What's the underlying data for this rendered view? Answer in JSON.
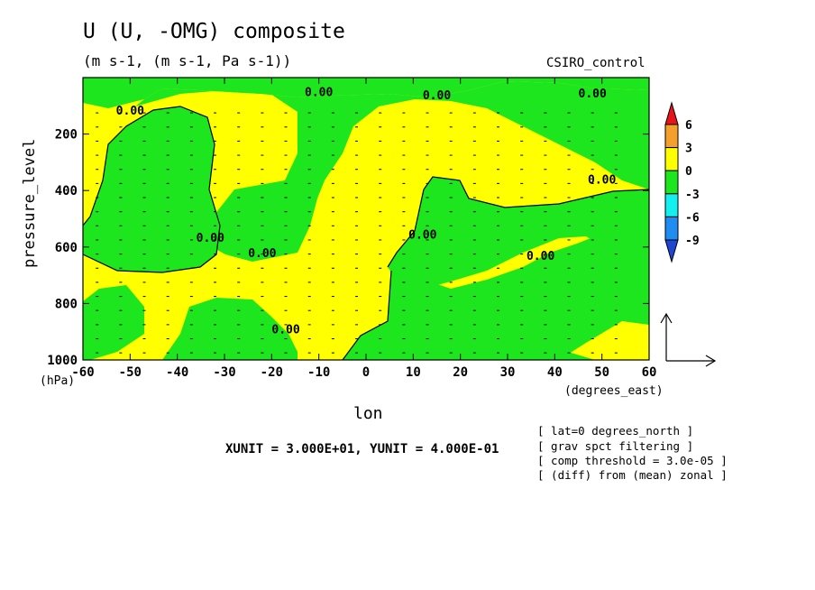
{
  "header": {
    "title": "U (U, -OMG) composite",
    "subtitle": "(m s-1, (m s-1, Pa s-1))",
    "model": "CSIRO_control"
  },
  "chart_data": {
    "type": "heatmap",
    "title": "U (U, -OMG) composite",
    "xlabel": "lon",
    "ylabel": "pressure_level",
    "x_unit": "(degrees_east)",
    "y_unit": "(hPa)",
    "xlim": [
      -60,
      60
    ],
    "ylim": [
      1000,
      0
    ],
    "x_ticks": [
      -60,
      -50,
      -40,
      -30,
      -20,
      -10,
      0,
      10,
      20,
      30,
      40,
      50,
      60
    ],
    "y_ticks": [
      200,
      400,
      600,
      800,
      1000
    ],
    "colorbar": {
      "levels": [
        -9,
        -6,
        -3,
        0,
        3,
        6
      ],
      "labels": [
        "6",
        "3",
        "0",
        "-3",
        "-6",
        "-9"
      ],
      "colors": {
        "above_6": "#e8141c",
        "3_to_6": "#f5a02c",
        "0_to_3": "#ffff00",
        "-3_to_0": "#1ee61e",
        "-6_to_-3": "#14f0f0",
        "-9_to_-6": "#1e8cf0",
        "below_-9": "#1e46d2"
      }
    },
    "contour_labels": [
      "0.00",
      "0.00",
      "0.00",
      "0.00",
      "0.00",
      "0.00",
      "0.00",
      "0.00",
      "0.00",
      "0.00"
    ],
    "vector_scale": "XUNIT = 3.000E+01, YUNIT = 4.000E-01"
  },
  "notes": [
    "[ lat=0 degrees_north ]",
    "[ grav spct filtering ]",
    "[ comp threshold = 3.0e-05 ]",
    "[ (diff) from (mean) zonal ]"
  ]
}
